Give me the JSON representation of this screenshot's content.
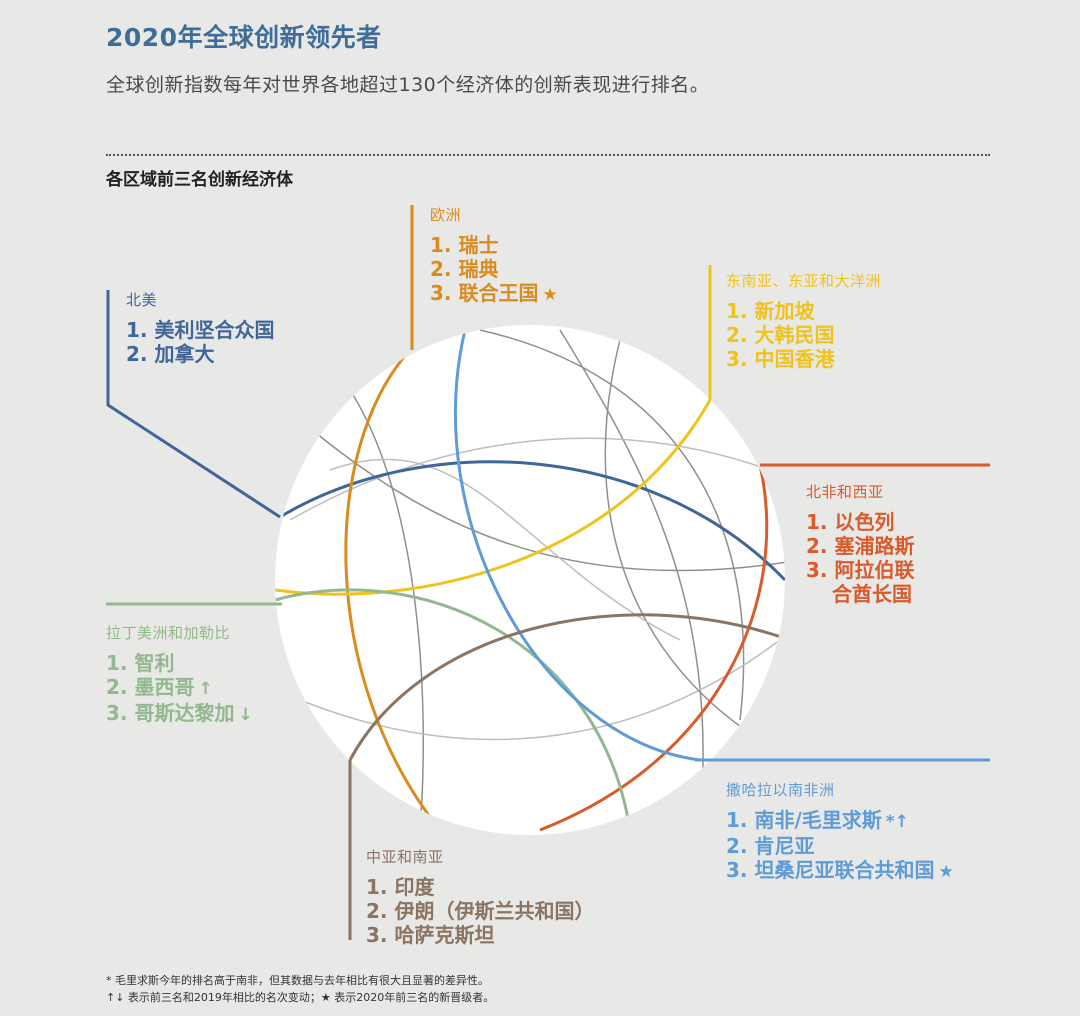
{
  "header": {
    "title": "2020年全球创新领先者",
    "subtitle": "全球创新指数每年对世界各地超过130个经济体的创新表现进行排名。"
  },
  "section_title": "各区域前三名创新经济体",
  "regions": [
    {
      "name": "北美",
      "color": "#3f6698",
      "items": [
        "1. 美利坚合众国",
        "2. 加拿大"
      ]
    },
    {
      "name": "欧洲",
      "color": "#d98c1e",
      "items": [
        "1. 瑞士",
        "2. 瑞典",
        "3. 联合王国"
      ],
      "marks": [
        "",
        "",
        "★"
      ]
    },
    {
      "name": "东南亚、东亚和大洋洲",
      "color": "#efc31c",
      "items": [
        "1. 新加坡",
        "2. 大韩民国",
        "3. 中国香港"
      ]
    },
    {
      "name": "北非和西亚",
      "color": "#d95a2b",
      "items": [
        "1. 以色列",
        "2. 塞浦路斯",
        "3. 阿拉伯联",
        "合酋长国"
      ]
    },
    {
      "name": "拉丁美洲和加勒比",
      "color": "#92b98d",
      "items": [
        "1. 智利",
        "2. 墨西哥",
        "3. 哥斯达黎加"
      ],
      "marks": [
        "",
        "↑",
        "↓"
      ]
    },
    {
      "name": "撒哈拉以南非洲",
      "color": "#5f9bd6",
      "items": [
        "1. 南非/毛里求斯",
        "2. 肯尼亚",
        "3. 坦桑尼亚联合共和国"
      ],
      "marks": [
        "*↑",
        "",
        "★"
      ]
    },
    {
      "name": "中亚和南亚",
      "color": "#8c7462",
      "items": [
        "1. 印度",
        "2. 伊朗（伊斯兰共和国）",
        "3. 哈萨克斯坦"
      ]
    }
  ],
  "footnotes": [
    "* 毛里求斯今年的排名高于南非，但其数据与去年相比有很大且显著的差异性。",
    "↑↓ 表示前三名和2019年相比的名次变动；★ 表示2020年前三名的新晋级者。"
  ]
}
